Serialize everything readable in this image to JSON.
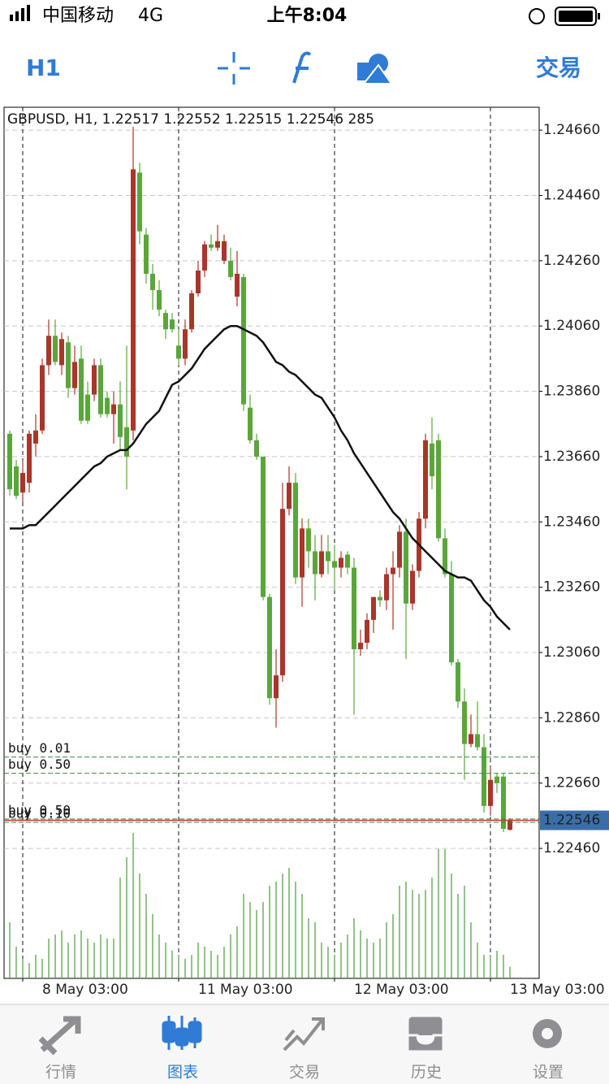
{
  "status_bar": {
    "carrier": "中国移动",
    "network": "4G",
    "time": "上午8:04"
  },
  "toolbar": {
    "timeframe": "H1",
    "trade": "交易"
  },
  "chart_data": {
    "type": "candlestick",
    "info": "GBPUSD, H1, 1.22517 1.22552 1.22515 1.22546 285",
    "categories": [
      null,
      null,
      "8 May 03:00",
      null,
      null,
      null,
      null,
      null,
      null,
      null,
      null,
      null,
      null,
      null,
      null,
      null,
      null,
      null,
      null,
      null,
      null,
      null,
      null,
      null,
      null,
      null,
      "11 May 03:00",
      null,
      null,
      null,
      null,
      null,
      null,
      null,
      null,
      null,
      null,
      null,
      null,
      null,
      null,
      null,
      null,
      null,
      null,
      null,
      null,
      null,
      null,
      null,
      "12 May 03:00",
      null,
      null,
      null,
      null,
      null,
      null,
      null,
      null,
      null,
      null,
      null,
      null,
      null,
      null,
      null,
      null,
      null,
      null,
      null,
      null,
      null,
      null,
      null,
      "13 May 03:00",
      null,
      null,
      null
    ],
    "open": [
      1.2373,
      1.2363,
      1.2355,
      1.2358,
      1.237,
      1.2374,
      1.2394,
      1.2403,
      1.2394,
      1.2401,
      1.2387,
      1.2396,
      1.2385,
      1.2385,
      1.2394,
      1.2384,
      1.2379,
      1.2382,
      1.2375,
      1.2374,
      1.2453,
      1.2434,
      1.2422,
      1.2417,
      1.241,
      1.2408,
      1.24,
      1.2396,
      1.2405,
      1.2416,
      1.2423,
      1.2431,
      1.243,
      1.2426,
      1.2426,
      1.2415,
      1.2421,
      1.2381,
      1.2371,
      1.2366,
      1.2323,
      1.2292,
      1.2299,
      1.235,
      1.2358,
      1.2329,
      1.2344,
      1.2337,
      1.233,
      1.2337,
      1.2334,
      1.2332,
      1.2336,
      1.2332,
      1.2307,
      1.2309,
      1.2316,
      1.2323,
      1.2322,
      1.233,
      1.2332,
      1.2343,
      1.2321,
      1.2331,
      1.2347,
      1.237,
      1.2371,
      1.2341,
      1.233,
      1.2303,
      1.2291,
      1.2278,
      1.2281,
      1.2277,
      1.2259,
      1.2268,
      1.2268,
      1.22517
    ],
    "high": [
      1.2374,
      1.2365,
      1.2365,
      1.2374,
      1.2379,
      1.2396,
      1.2408,
      1.2408,
      1.2404,
      1.2403,
      1.24,
      1.24,
      1.2389,
      1.2396,
      1.2396,
      1.2386,
      1.2386,
      1.2389,
      1.24,
      1.2467,
      1.2456,
      1.2436,
      1.2425,
      1.242,
      1.2411,
      1.241,
      1.2405,
      1.2408,
      1.2417,
      1.2426,
      1.2432,
      1.2434,
      1.2437,
      1.2434,
      1.243,
      1.2429,
      1.2422,
      1.2385,
      1.2373,
      1.2366,
      1.2324,
      1.2307,
      1.2358,
      1.2363,
      1.2361,
      1.2347,
      1.2347,
      1.2342,
      1.2342,
      1.2342,
      1.2339,
      1.2337,
      1.2337,
      1.2335,
      1.2313,
      1.2318,
      1.2323,
      1.2325,
      1.2332,
      1.2337,
      1.2345,
      1.2347,
      1.2333,
      1.2349,
      1.2373,
      1.2378,
      1.2373,
      1.2344,
      1.2334,
      1.2304,
      1.2295,
      1.2287,
      1.2291,
      1.2281,
      1.2271,
      1.2269,
      1.2269,
      1.22552
    ],
    "low": [
      1.2354,
      1.2353,
      1.2352,
      1.2355,
      1.2366,
      1.2373,
      1.2391,
      1.2394,
      1.2391,
      1.2384,
      1.2385,
      1.2376,
      1.2376,
      1.2383,
      1.2378,
      1.2378,
      1.237,
      1.2368,
      1.2356,
      1.2371,
      1.2431,
      1.2419,
      1.2411,
      1.2409,
      1.2402,
      1.2404,
      1.2394,
      1.2394,
      1.2404,
      1.2415,
      1.2421,
      1.2429,
      1.2429,
      1.2425,
      1.242,
      1.2412,
      1.238,
      1.237,
      1.2365,
      1.2322,
      1.229,
      1.2283,
      1.2297,
      1.2348,
      1.2327,
      1.232,
      1.2332,
      1.2322,
      1.2329,
      1.233,
      1.2325,
      1.2329,
      1.233,
      1.2287,
      1.2305,
      1.2307,
      1.2312,
      1.232,
      1.2319,
      1.2313,
      1.2329,
      1.2304,
      1.2319,
      1.2329,
      1.2344,
      1.2356,
      1.234,
      1.2329,
      1.2302,
      1.2289,
      1.2267,
      1.2277,
      1.2276,
      1.2257,
      1.2256,
      1.2263,
      1.2251,
      1.22515
    ],
    "close": [
      1.2356,
      1.2354,
      1.2361,
      1.2373,
      1.2374,
      1.2394,
      1.2403,
      1.2395,
      1.2402,
      1.2387,
      1.2395,
      1.2377,
      1.2377,
      1.2394,
      1.2379,
      1.2379,
      1.2382,
      1.2372,
      1.2366,
      1.2454,
      1.2435,
      1.2422,
      1.2417,
      1.2411,
      1.2405,
      1.2405,
      1.2396,
      1.2405,
      1.2416,
      1.2423,
      1.2431,
      1.243,
      1.2432,
      1.2432,
      1.2421,
      1.2422,
      1.2382,
      1.2371,
      1.2366,
      1.2323,
      1.2292,
      1.2299,
      1.235,
      1.2358,
      1.2329,
      1.2344,
      1.2337,
      1.233,
      1.2337,
      1.2334,
      1.2332,
      1.2335,
      1.2332,
      1.2307,
      1.2309,
      1.2316,
      1.2323,
      1.2322,
      1.233,
      1.2332,
      1.2343,
      1.2321,
      1.2331,
      1.2347,
      1.2371,
      1.236,
      1.2341,
      1.233,
      1.2303,
      1.2291,
      1.2278,
      1.2281,
      1.2277,
      1.2259,
      1.2267,
      1.2266,
      1.2252,
      1.22546
    ],
    "up_color": "#a8362a",
    "down_color": "#5aa63c",
    "volume": [
      1380,
      780,
      480,
      380,
      580,
      480,
      980,
      1080,
      1180,
      880,
      1080,
      1180,
      980,
      880,
      1080,
      980,
      980,
      2480,
      2980,
      3580,
      2580,
      2080,
      1580,
      1080,
      880,
      680,
      580,
      480,
      580,
      880,
      780,
      680,
      580,
      780,
      1080,
      1280,
      2080,
      1880,
      1680,
      1880,
      2280,
      2380,
      2580,
      2720,
      2380,
      2080,
      1480,
      1380,
      880,
      780,
      580,
      880,
      1080,
      1480,
      1180,
      980,
      880,
      980,
      1380,
      1580,
      2280,
      2380,
      2180,
      2080,
      2180,
      2480,
      3180,
      3180,
      2580,
      2080,
      2280,
      1380,
      880,
      580,
      580,
      680,
      580,
      285
    ],
    "volume_color": "#4c9a3c",
    "volume_ylim": [
      0,
      3600
    ],
    "moving_average": {
      "color": "#111111",
      "values": [
        1.2344,
        1.2344,
        1.2344,
        1.2345,
        1.2345,
        1.2347,
        1.2349,
        1.2351,
        1.2353,
        1.2355,
        1.2357,
        1.2359,
        1.2361,
        1.2363,
        1.2364,
        1.2366,
        1.2367,
        1.2368,
        1.2368,
        1.237,
        1.2373,
        1.2376,
        1.2378,
        1.238,
        1.2384,
        1.2388,
        1.2389,
        1.2391,
        1.2393,
        1.2396,
        1.2399,
        1.2401,
        1.2403,
        1.2405,
        1.2406,
        1.2406,
        1.2405,
        1.2404,
        1.2403,
        1.2401,
        1.2398,
        1.2395,
        1.2394,
        1.2392,
        1.2391,
        1.2389,
        1.2387,
        1.2385,
        1.2384,
        1.2381,
        1.2378,
        1.2374,
        1.2371,
        1.2367,
        1.2364,
        1.2361,
        1.2358,
        1.2355,
        1.2352,
        1.2349,
        1.2347,
        1.2344,
        1.2341,
        1.2339,
        1.2337,
        1.2335,
        1.2333,
        1.2331,
        1.233,
        1.2329,
        1.2329,
        1.2328,
        1.2325,
        1.2322,
        1.232,
        1.2317,
        1.2315,
        1.2313
      ]
    },
    "ylim": [
      1.22062,
      1.2473
    ],
    "yticks": [
      {
        "value": 1.2466,
        "label": "1.24660"
      },
      {
        "value": 1.2446,
        "label": "1.24460"
      },
      {
        "value": 1.2426,
        "label": "1.24260"
      },
      {
        "value": 1.2406,
        "label": "1.24060"
      },
      {
        "value": 1.2386,
        "label": "1.23860"
      },
      {
        "value": 1.2366,
        "label": "1.23660"
      },
      {
        "value": 1.2346,
        "label": "1.23460"
      },
      {
        "value": 1.2326,
        "label": "1.23260"
      },
      {
        "value": 1.2306,
        "label": "1.23060"
      },
      {
        "value": 1.2286,
        "label": "1.22860"
      },
      {
        "value": 1.2266,
        "label": "1.22660"
      },
      {
        "value": 1.2246,
        "label": "1.22460"
      }
    ],
    "grid": true,
    "current_price": 1.22546,
    "orders": [
      {
        "label": "buy 0.01",
        "price": 1.2274
      },
      {
        "label": "buy 0.50",
        "price": 1.2269
      },
      {
        "label": "buy 0.50",
        "price": 1.2255
      },
      {
        "label": "buy 0.10",
        "price": 1.2254
      }
    ],
    "order_color": "#3d8a3d"
  },
  "tab_bar": {
    "tabs": [
      "行情",
      "图表",
      "交易",
      "历史",
      "设置"
    ],
    "active": 1
  }
}
